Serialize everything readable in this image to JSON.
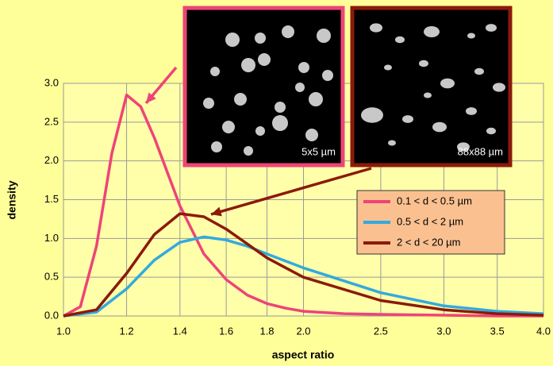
{
  "chart_data": {
    "type": "line",
    "x_label": "aspect ratio",
    "y_label": "density",
    "xlim": [
      1.0,
      4.0
    ],
    "ylim": [
      0,
      3.0
    ],
    "log_x": true,
    "grid": true,
    "legend_position": "right",
    "xticks": [
      {
        "value": 1.0,
        "label": "1.0"
      },
      1.2,
      1.4,
      1.6,
      1.8,
      {
        "value": 2.0,
        "label": "2.0"
      },
      2.5,
      {
        "value": 3.0,
        "label": "3.0"
      },
      3.5,
      {
        "value": 4.0,
        "label": "4.0"
      }
    ],
    "yticks": [
      {
        "value": 0,
        "label": "0.0"
      },
      0.5,
      {
        "value": 1.0,
        "label": "1.0"
      },
      1.5,
      {
        "value": 2.0,
        "label": "2.0"
      },
      2.5,
      {
        "value": 3.0,
        "label": "3.0"
      }
    ],
    "series": [
      {
        "name": "0.1 < d < 0.5 µm",
        "color": "#ee4477",
        "x": [
          1.0,
          1.05,
          1.1,
          1.15,
          1.2,
          1.25,
          1.3,
          1.35,
          1.4,
          1.5,
          1.6,
          1.7,
          1.8,
          1.9,
          2.0,
          2.25,
          2.5,
          3.0,
          3.5,
          4.0
        ],
        "values": [
          0,
          0.12,
          0.9,
          2.1,
          2.85,
          2.7,
          2.3,
          1.85,
          1.42,
          0.8,
          0.47,
          0.27,
          0.16,
          0.1,
          0.06,
          0.03,
          0.02,
          0.01,
          0,
          0
        ]
      },
      {
        "name": "0.5 < d < 2 µm",
        "color": "#33aadd",
        "x": [
          1.0,
          1.1,
          1.2,
          1.3,
          1.4,
          1.5,
          1.6,
          1.7,
          1.8,
          2.0,
          2.5,
          3.0,
          3.5,
          4.0
        ],
        "values": [
          0,
          0.05,
          0.35,
          0.72,
          0.95,
          1.02,
          0.98,
          0.9,
          0.8,
          0.62,
          0.3,
          0.13,
          0.06,
          0.03
        ]
      },
      {
        "name": "2 < d < 20 µm",
        "color": "#8b1a0a",
        "x": [
          1.0,
          1.1,
          1.2,
          1.3,
          1.4,
          1.5,
          1.6,
          1.7,
          1.8,
          2.0,
          2.5,
          3.0,
          3.5,
          4.0
        ],
        "values": [
          0,
          0.08,
          0.55,
          1.05,
          1.32,
          1.28,
          1.12,
          0.93,
          0.75,
          0.5,
          0.2,
          0.08,
          0.03,
          0.01
        ]
      }
    ],
    "insets": [
      {
        "label": "5x5 µm",
        "color": "#ee4477"
      },
      {
        "label": "88x88 µm",
        "color": "#8b1a0a"
      }
    ]
  }
}
